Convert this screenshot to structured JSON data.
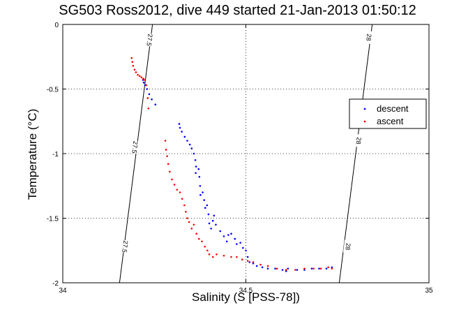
{
  "chart_data": {
    "type": "scatter",
    "title": "SG503 Ross2012, dive 449 started 21-Jan-2013 01:50:12",
    "xlabel": "Salinity (S [PSS-78])",
    "ylabel": "Temperature (°C)",
    "xlim": [
      34,
      35
    ],
    "ylim": [
      -2,
      0
    ],
    "y_reversed": true,
    "grid": "dotted",
    "x_ticks": [
      {
        "value": 34,
        "label": "34"
      },
      {
        "value": 34.5,
        "label": "34.5"
      },
      {
        "value": 35,
        "label": "35"
      }
    ],
    "y_ticks": [
      {
        "value": 0,
        "label": "0"
      },
      {
        "value": -0.5,
        "label": "-0.5"
      },
      {
        "value": -1,
        "label": "-1"
      },
      {
        "value": -1.5,
        "label": "-1.5"
      },
      {
        "value": -2,
        "label": "-2"
      }
    ],
    "legend_position": "right",
    "series": [
      {
        "name": "descent",
        "color": "#0000ff",
        "points": [
          [
            34.219,
            -0.43
          ],
          [
            34.221,
            -0.45
          ],
          [
            34.225,
            -0.47
          ],
          [
            34.23,
            -0.5
          ],
          [
            34.236,
            -0.54
          ],
          [
            34.243,
            -0.58
          ],
          [
            34.253,
            -0.62
          ],
          [
            34.318,
            -0.77
          ],
          [
            34.32,
            -0.8
          ],
          [
            34.325,
            -0.83
          ],
          [
            34.333,
            -0.87
          ],
          [
            34.34,
            -0.9
          ],
          [
            34.347,
            -0.93
          ],
          [
            34.352,
            -0.96
          ],
          [
            34.358,
            -1.0
          ],
          [
            34.362,
            -1.05
          ],
          [
            34.364,
            -1.1
          ],
          [
            34.363,
            -1.15
          ],
          [
            34.371,
            -1.12
          ],
          [
            34.373,
            -1.18
          ],
          [
            34.375,
            -1.25
          ],
          [
            34.376,
            -1.32
          ],
          [
            34.382,
            -1.3
          ],
          [
            34.386,
            -1.36
          ],
          [
            34.389,
            -1.42
          ],
          [
            34.394,
            -1.4
          ],
          [
            34.398,
            -1.47
          ],
          [
            34.4,
            -1.54
          ],
          [
            34.405,
            -1.58
          ],
          [
            34.41,
            -1.52
          ],
          [
            34.413,
            -1.48
          ],
          [
            34.418,
            -1.55
          ],
          [
            34.43,
            -1.6
          ],
          [
            34.44,
            -1.64
          ],
          [
            34.448,
            -1.68
          ],
          [
            34.452,
            -1.63
          ],
          [
            34.46,
            -1.62
          ],
          [
            34.47,
            -1.66
          ],
          [
            34.475,
            -1.7
          ],
          [
            34.485,
            -1.69
          ],
          [
            34.492,
            -1.73
          ],
          [
            34.5,
            -1.75
          ],
          [
            34.505,
            -1.8
          ],
          [
            34.51,
            -1.84
          ],
          [
            34.52,
            -1.85
          ],
          [
            34.53,
            -1.87
          ],
          [
            34.545,
            -1.88
          ],
          [
            34.56,
            -1.89
          ],
          [
            34.58,
            -1.89
          ],
          [
            34.6,
            -1.9
          ],
          [
            34.61,
            -1.91
          ],
          [
            34.615,
            -1.89
          ],
          [
            34.64,
            -1.9
          ],
          [
            34.66,
            -1.9
          ],
          [
            34.68,
            -1.89
          ],
          [
            34.7,
            -1.89
          ],
          [
            34.72,
            -1.89
          ],
          [
            34.735,
            -1.88
          ]
        ]
      },
      {
        "name": "ascent",
        "color": "#ff0000",
        "points": [
          [
            34.188,
            -0.26
          ],
          [
            34.19,
            -0.29
          ],
          [
            34.192,
            -0.32
          ],
          [
            34.196,
            -0.35
          ],
          [
            34.2,
            -0.37
          ],
          [
            34.205,
            -0.39
          ],
          [
            34.21,
            -0.4
          ],
          [
            34.215,
            -0.41
          ],
          [
            34.22,
            -0.42
          ],
          [
            34.224,
            -0.43
          ],
          [
            34.228,
            -0.47
          ],
          [
            34.232,
            -0.57
          ],
          [
            34.234,
            -0.65
          ],
          [
            34.28,
            -0.9
          ],
          [
            34.282,
            -0.97
          ],
          [
            34.285,
            -1.02
          ],
          [
            34.288,
            -1.08
          ],
          [
            34.292,
            -1.14
          ],
          [
            34.298,
            -1.2
          ],
          [
            34.305,
            -1.24
          ],
          [
            34.312,
            -1.28
          ],
          [
            34.32,
            -1.3
          ],
          [
            34.326,
            -1.35
          ],
          [
            34.332,
            -1.4
          ],
          [
            34.336,
            -1.45
          ],
          [
            34.34,
            -1.5
          ],
          [
            34.345,
            -1.53
          ],
          [
            34.352,
            -1.58
          ],
          [
            34.358,
            -1.55
          ],
          [
            34.365,
            -1.62
          ],
          [
            34.372,
            -1.66
          ],
          [
            34.38,
            -1.68
          ],
          [
            34.388,
            -1.72
          ],
          [
            34.395,
            -1.75
          ],
          [
            34.4,
            -1.78
          ],
          [
            34.41,
            -1.8
          ],
          [
            34.42,
            -1.78
          ],
          [
            34.44,
            -1.79
          ],
          [
            34.46,
            -1.8
          ],
          [
            34.475,
            -1.8
          ],
          [
            34.49,
            -1.82
          ],
          [
            34.505,
            -1.83
          ],
          [
            34.52,
            -1.84
          ],
          [
            34.54,
            -1.86
          ],
          [
            34.56,
            -1.87
          ],
          [
            34.585,
            -1.89
          ],
          [
            34.61,
            -1.9
          ],
          [
            34.635,
            -1.9
          ],
          [
            34.66,
            -1.89
          ],
          [
            34.685,
            -1.89
          ],
          [
            34.705,
            -1.89
          ],
          [
            34.725,
            -1.88
          ],
          [
            34.735,
            -1.89
          ]
        ]
      }
    ],
    "isopycnals": [
      {
        "value": 27.5,
        "label": "27.5",
        "x_at_top": 34.245,
        "x_at_bottom": 34.155,
        "label_positions": [
          {
            "x": 34.237,
            "y": -0.12
          },
          {
            "x": 34.197,
            "y": -0.95
          },
          {
            "x": 34.17,
            "y": -1.72
          }
        ]
      },
      {
        "value": 28,
        "label": "28",
        "x_at_top": 34.845,
        "x_at_bottom": 34.755,
        "label_positions": [
          {
            "x": 34.836,
            "y": -0.1
          },
          {
            "x": 34.808,
            "y": -0.9
          },
          {
            "x": 34.779,
            "y": -1.72
          }
        ]
      }
    ]
  }
}
